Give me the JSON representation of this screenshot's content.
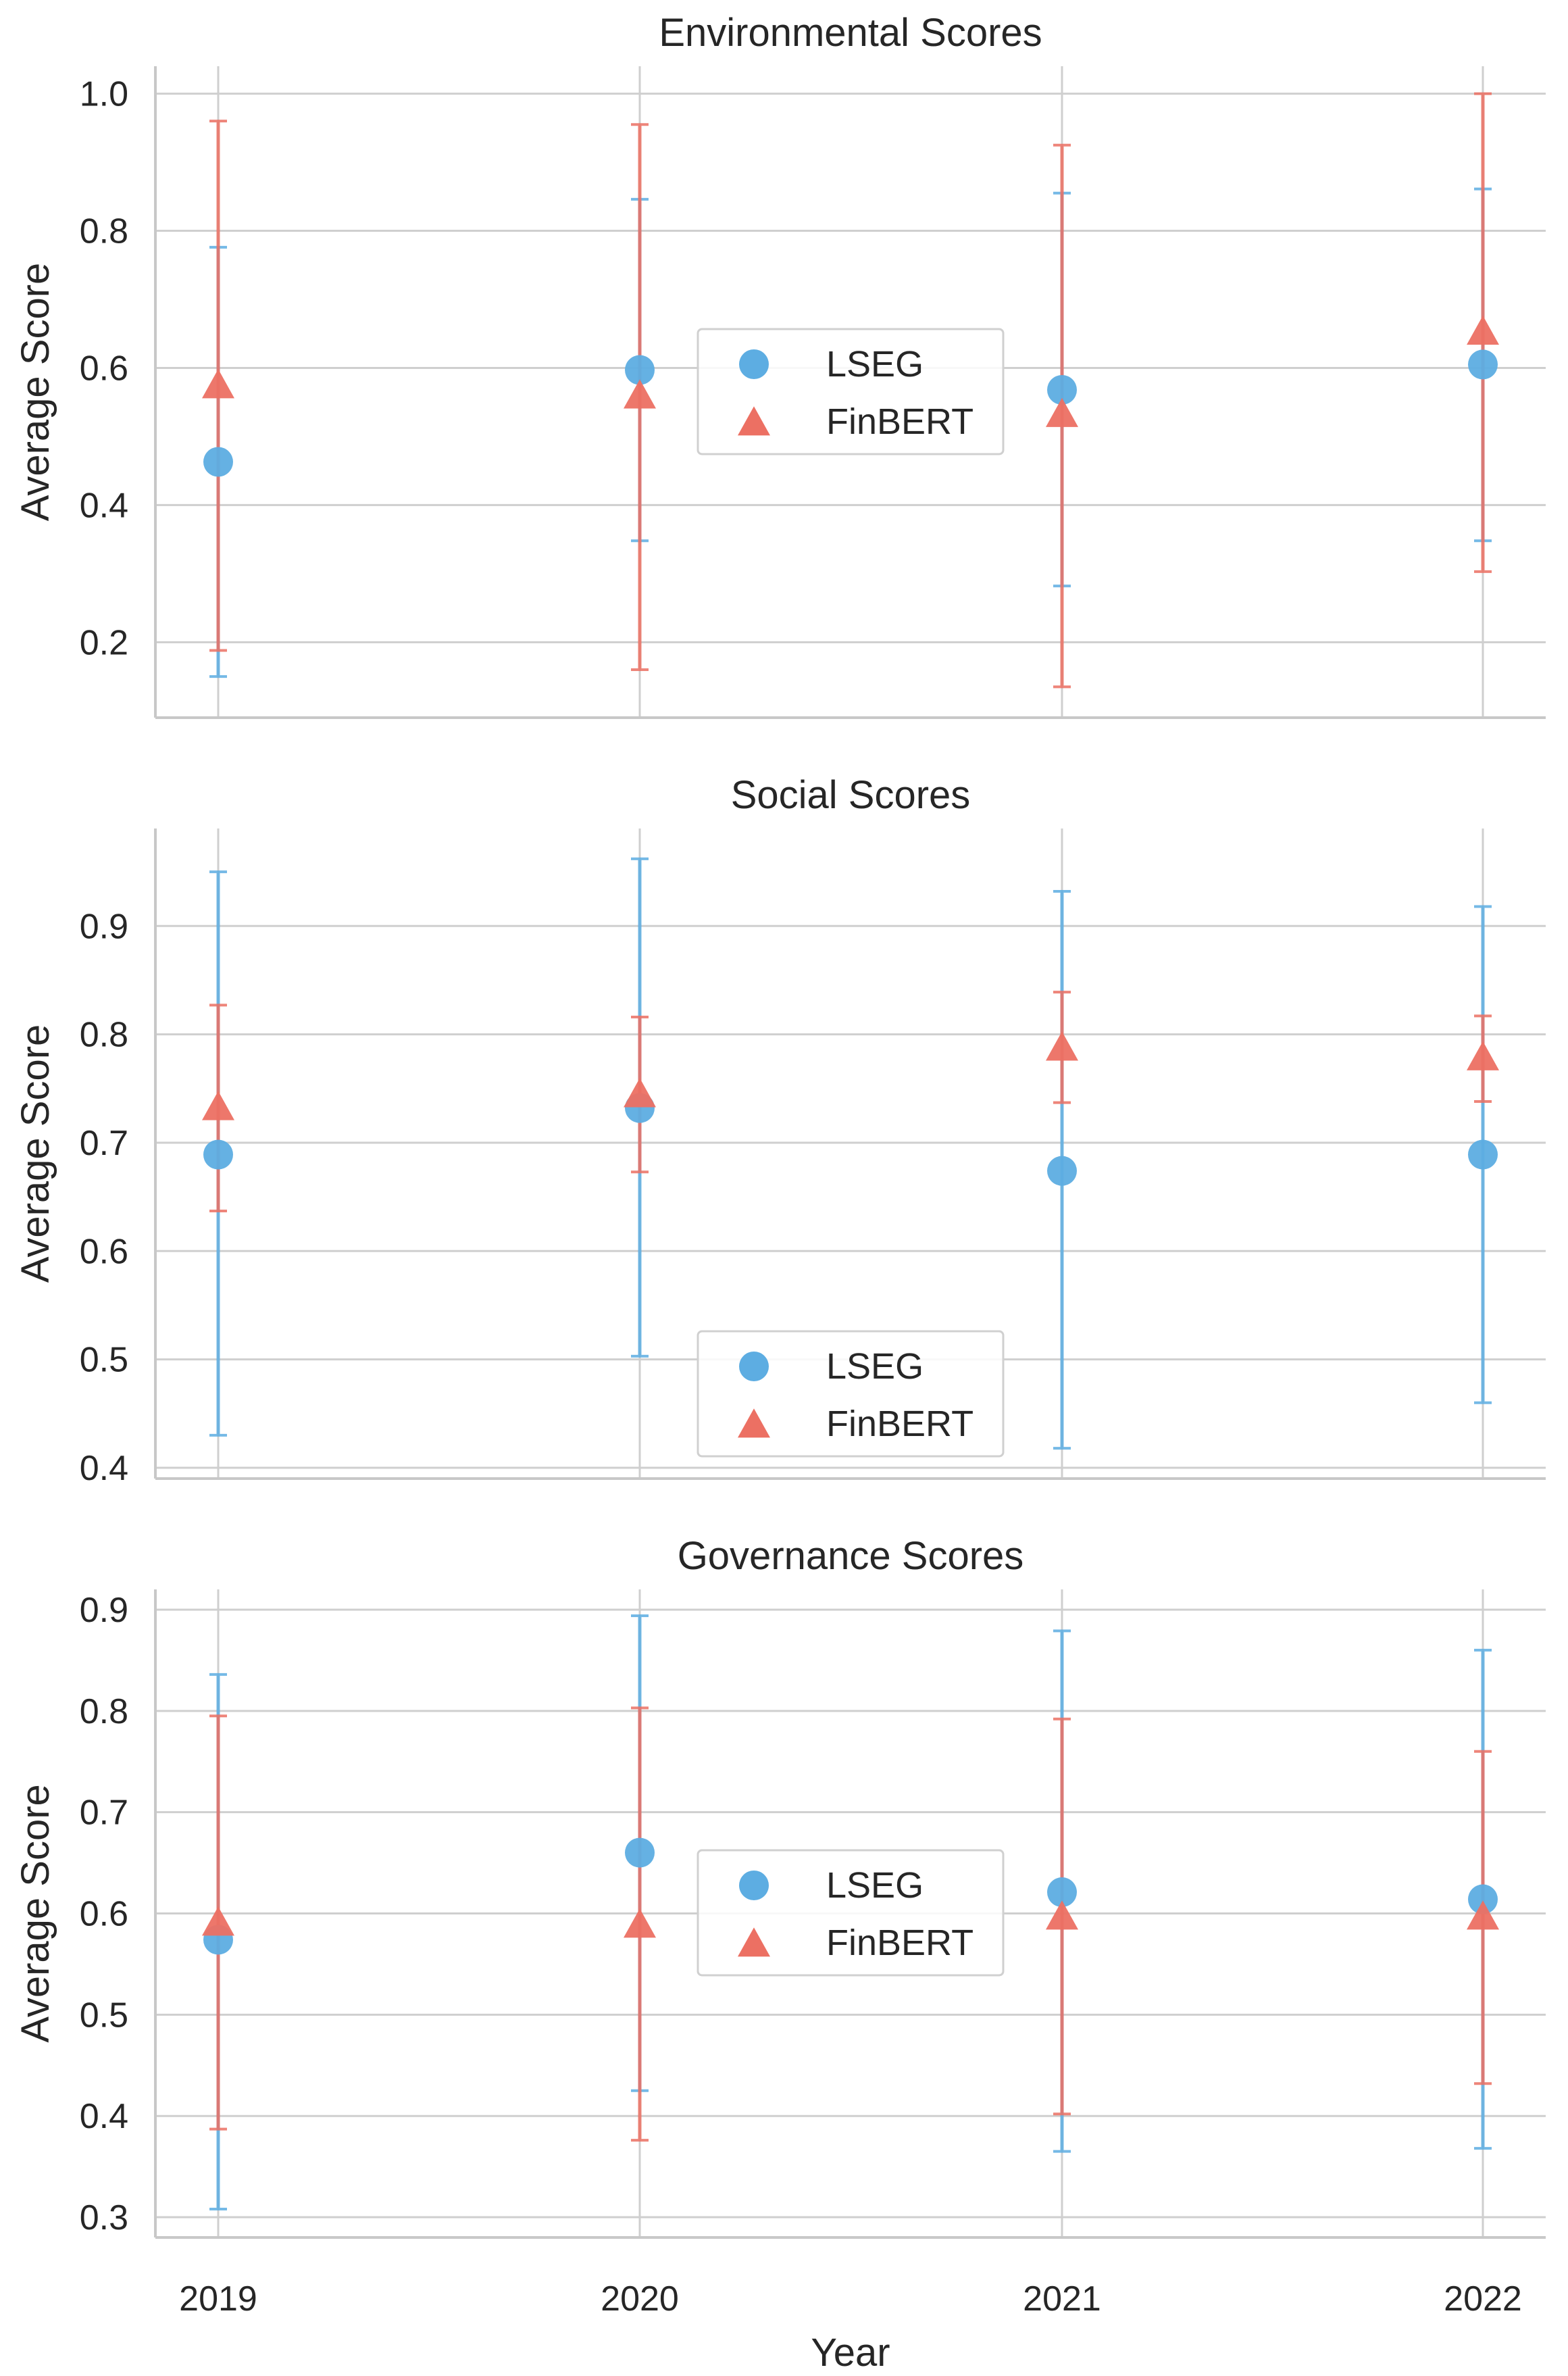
{
  "chart_data": [
    {
      "type": "scatter",
      "title": "Environmental Scores",
      "ylabel": "Average Score",
      "xlabel": "",
      "categories": [
        "2019",
        "2020",
        "2021",
        "2022"
      ],
      "ylim": [
        0.09,
        1.04
      ],
      "yticks": [
        0.2,
        0.4,
        0.6,
        0.8,
        1.0
      ],
      "ytick_labels": [
        "0.2",
        "0.4",
        "0.6",
        "0.8",
        "1.0"
      ],
      "grid": true,
      "legend": "center",
      "series": [
        {
          "name": "LSEG",
          "marker": "circle",
          "color": "#5DADE2",
          "values": [
            0.463,
            0.597,
            0.568,
            0.605
          ],
          "err_low": [
            0.15,
            0.348,
            0.282,
            0.348
          ],
          "err_high": [
            0.776,
            0.846,
            0.855,
            0.861
          ]
        },
        {
          "name": "FinBERT",
          "marker": "triangle",
          "color": "#EC7063",
          "values": [
            0.572,
            0.557,
            0.53,
            0.65
          ],
          "err_low": [
            0.188,
            0.16,
            0.135,
            0.303
          ],
          "err_high": [
            0.96,
            0.955,
            0.925,
            1.0
          ]
        }
      ]
    },
    {
      "type": "scatter",
      "title": "Social Scores",
      "ylabel": "Average Score",
      "xlabel": "",
      "categories": [
        "2019",
        "2020",
        "2021",
        "2022"
      ],
      "ylim": [
        0.39,
        0.99
      ],
      "yticks": [
        0.4,
        0.5,
        0.6,
        0.7,
        0.8,
        0.9
      ],
      "ytick_labels": [
        "0.4",
        "0.5",
        "0.6",
        "0.7",
        "0.8",
        "0.9"
      ],
      "grid": true,
      "legend": "lower center",
      "series": [
        {
          "name": "LSEG",
          "marker": "circle",
          "color": "#5DADE2",
          "values": [
            0.689,
            0.732,
            0.674,
            0.689
          ],
          "err_low": [
            0.43,
            0.503,
            0.418,
            0.46
          ],
          "err_high": [
            0.95,
            0.962,
            0.932,
            0.918
          ]
        },
        {
          "name": "FinBERT",
          "marker": "triangle",
          "color": "#EC7063",
          "values": [
            0.731,
            0.743,
            0.786,
            0.777
          ],
          "err_low": [
            0.637,
            0.673,
            0.737,
            0.738
          ],
          "err_high": [
            0.827,
            0.816,
            0.839,
            0.817
          ]
        }
      ]
    },
    {
      "type": "scatter",
      "title": "Governance Scores",
      "ylabel": "Average Score",
      "xlabel": "Year",
      "categories": [
        "2019",
        "2020",
        "2021",
        "2022"
      ],
      "ylim": [
        0.28,
        0.92
      ],
      "yticks": [
        0.3,
        0.4,
        0.5,
        0.6,
        0.7,
        0.8,
        0.9
      ],
      "ytick_labels": [
        "0.3",
        "0.4",
        "0.5",
        "0.6",
        "0.7",
        "0.8",
        "0.9"
      ],
      "grid": true,
      "legend": "center",
      "series": [
        {
          "name": "LSEG",
          "marker": "circle",
          "color": "#5DADE2",
          "values": [
            0.574,
            0.66,
            0.621,
            0.614
          ],
          "err_low": [
            0.308,
            0.425,
            0.365,
            0.368
          ],
          "err_high": [
            0.836,
            0.894,
            0.879,
            0.86
          ]
        },
        {
          "name": "FinBERT",
          "marker": "triangle",
          "color": "#EC7063",
          "values": [
            0.589,
            0.587,
            0.595,
            0.595
          ],
          "err_low": [
            0.387,
            0.376,
            0.402,
            0.432
          ],
          "err_high": [
            0.795,
            0.803,
            0.792,
            0.76
          ]
        }
      ]
    }
  ]
}
